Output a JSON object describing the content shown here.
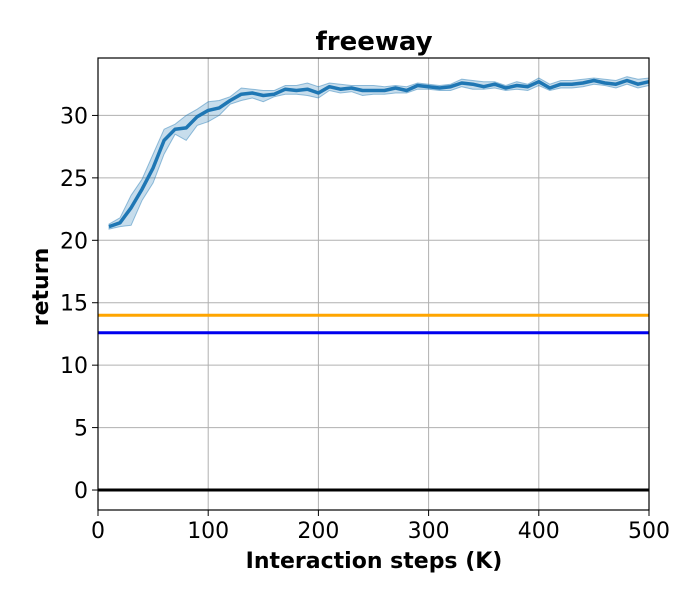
{
  "chart_data": {
    "type": "line",
    "title": "freeway",
    "xlabel": "Interaction steps (K)",
    "ylabel": "return",
    "xlim": [
      0,
      500
    ],
    "ylim": [
      -1.6,
      34.6
    ],
    "xticks": [
      0,
      100,
      200,
      300,
      400,
      500
    ],
    "yticks": [
      0,
      5,
      10,
      15,
      20,
      25,
      30
    ],
    "grid": true,
    "colors": {
      "main": "#1f77b4",
      "band": "#1f77b4",
      "orange": "#ffa500",
      "blue": "#0000ee",
      "black": "#000000",
      "grid": "#b0b0b0"
    },
    "series": [
      {
        "x": [
          10,
          20,
          30,
          40,
          50,
          60,
          70,
          80,
          90,
          100,
          110,
          120,
          130,
          140,
          150,
          160,
          170,
          180,
          190,
          200,
          210,
          220,
          230,
          240,
          250,
          260,
          270,
          280,
          290,
          300,
          310,
          320,
          330,
          340,
          350,
          360,
          370,
          380,
          390,
          400,
          410,
          420,
          430,
          440,
          450,
          460,
          470,
          480,
          490,
          500
        ],
        "y": [
          21.1,
          21.4,
          22.6,
          24.1,
          25.8,
          28.0,
          28.9,
          29.0,
          29.9,
          30.4,
          30.6,
          31.2,
          31.7,
          31.8,
          31.6,
          31.7,
          32.1,
          32.0,
          32.1,
          31.8,
          32.3,
          32.1,
          32.2,
          32.0,
          32.0,
          32.0,
          32.2,
          32.0,
          32.4,
          32.3,
          32.2,
          32.3,
          32.6,
          32.5,
          32.3,
          32.5,
          32.2,
          32.4,
          32.3,
          32.7,
          32.2,
          32.5,
          32.5,
          32.6,
          32.8,
          32.6,
          32.5,
          32.8,
          32.5,
          32.7
        ],
        "lower": [
          20.9,
          21.1,
          21.2,
          23.2,
          24.6,
          26.9,
          28.5,
          28.0,
          29.2,
          29.5,
          30.0,
          30.9,
          31.2,
          31.4,
          31.1,
          31.5,
          31.7,
          31.7,
          31.6,
          31.4,
          32.0,
          31.8,
          31.9,
          31.6,
          31.7,
          31.7,
          31.8,
          31.8,
          32.1,
          32.1,
          32.0,
          32.0,
          32.3,
          32.1,
          32.1,
          32.2,
          32.0,
          32.1,
          32.0,
          32.4,
          32.0,
          32.2,
          32.2,
          32.3,
          32.5,
          32.4,
          32.2,
          32.5,
          32.2,
          32.4
        ],
        "upper": [
          21.3,
          21.8,
          23.6,
          24.9,
          26.9,
          28.9,
          29.3,
          30.0,
          30.5,
          31.1,
          31.2,
          31.5,
          32.2,
          32.1,
          32.0,
          32.0,
          32.4,
          32.4,
          32.6,
          32.3,
          32.6,
          32.5,
          32.4,
          32.4,
          32.4,
          32.3,
          32.4,
          32.3,
          32.6,
          32.5,
          32.4,
          32.5,
          32.9,
          32.8,
          32.7,
          32.7,
          32.4,
          32.7,
          32.5,
          33.0,
          32.5,
          32.8,
          32.8,
          32.9,
          33.0,
          32.9,
          32.8,
          33.1,
          32.9,
          33.0
        ]
      }
    ],
    "reference_lines": [
      {
        "y": 14.0,
        "color": "#ffa500"
      },
      {
        "y": 12.6,
        "color": "#0000ee"
      },
      {
        "y": 0.0,
        "color": "#000000"
      }
    ]
  }
}
